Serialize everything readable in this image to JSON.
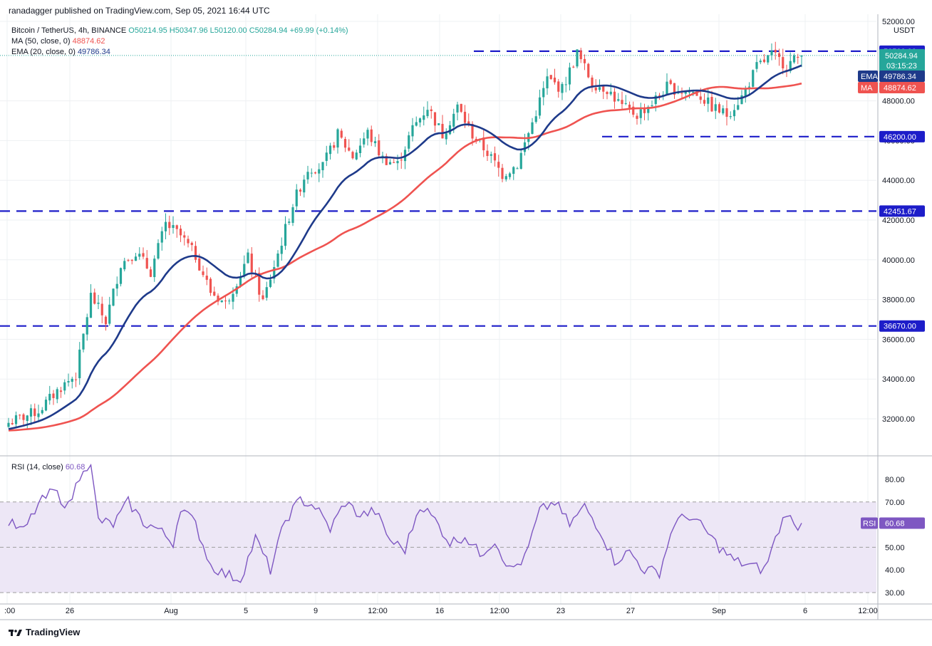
{
  "header": {
    "publisher": "ranadagger published on TradingView.com, Sep 05, 2021 16:44 UTC"
  },
  "legend": {
    "symbol": "Bitcoin / TetherUS, 4h, BINANCE",
    "ohlc": "O50214.95 H50347.96 L50120.00 C50284.94 +69.99 (+0.14%)",
    "ma_label": "MA (50, close, 0)",
    "ma_value": "48874.62",
    "ema_label": "EMA (20, close, 0)",
    "ema_value": "49786.34"
  },
  "rsi_title": {
    "label": "RSI (14, close)",
    "value": "60.68"
  },
  "footer": {
    "brand": "TradingView"
  },
  "colors": {
    "up": "#26a69a",
    "down": "#ef5350",
    "ema": "#1e3a8a",
    "ma": "#ef5350",
    "level": "#1d1dc9",
    "rsi": "#7e57c2",
    "rsi_band": "#ede7f6"
  },
  "chart_data": [
    {
      "type": "candlestick",
      "title": "Bitcoin / TetherUS, 4h, BINANCE",
      "y_unit": "USDT",
      "ylim": [
        30600,
        52000
      ],
      "y_ticks": [
        "52000.00",
        "48000.00",
        "46000.00",
        "44000.00",
        "42000.00",
        "40000.00",
        "38000.00",
        "36000.00",
        "34000.00",
        "32000.00"
      ],
      "x_ticks": [
        ":00",
        "26",
        "Aug",
        "5",
        "9",
        "12:00",
        "16",
        "12:00",
        "23",
        "27",
        "Sep",
        "6",
        "12:00"
      ],
      "levels": [
        {
          "label": "50500.00",
          "value": 50500
        },
        {
          "label": "46200.00",
          "value": 46200
        },
        {
          "label": "42451.67",
          "value": 42452
        },
        {
          "label": "36670.00",
          "value": 36670
        }
      ],
      "last_price": {
        "label": "50284.94",
        "countdown": "03:15:23",
        "value": 50285
      },
      "indicators": [
        {
          "name": "EMA",
          "label": "49786.34",
          "value": 49786
        },
        {
          "name": "MA",
          "label": "48874.62",
          "value": 48875
        }
      ],
      "close_anchors": [
        [
          0,
          31800
        ],
        [
          8,
          32400
        ],
        [
          14,
          33600
        ],
        [
          18,
          34200
        ],
        [
          22,
          38200
        ],
        [
          26,
          36900
        ],
        [
          30,
          39800
        ],
        [
          34,
          40400
        ],
        [
          38,
          39400
        ],
        [
          42,
          41800
        ],
        [
          46,
          41200
        ],
        [
          50,
          40200
        ],
        [
          54,
          38400
        ],
        [
          58,
          37800
        ],
        [
          64,
          40100
        ],
        [
          68,
          37900
        ],
        [
          72,
          40300
        ],
        [
          76,
          42800
        ],
        [
          80,
          44600
        ],
        [
          84,
          44700
        ],
        [
          88,
          46300
        ],
        [
          92,
          45200
        ],
        [
          96,
          46400
        ],
        [
          100,
          45100
        ],
        [
          104,
          44800
        ],
        [
          108,
          46600
        ],
        [
          112,
          47700
        ],
        [
          116,
          46300
        ],
        [
          120,
          47700
        ],
        [
          124,
          46300
        ],
        [
          128,
          45400
        ],
        [
          132,
          44300
        ],
        [
          136,
          44800
        ],
        [
          140,
          46900
        ],
        [
          144,
          49100
        ],
        [
          148,
          48600
        ],
        [
          152,
          50400
        ],
        [
          156,
          48900
        ],
        [
          160,
          48600
        ],
        [
          164,
          47700
        ],
        [
          168,
          47300
        ],
        [
          172,
          47900
        ],
        [
          176,
          48700
        ],
        [
          180,
          48500
        ],
        [
          184,
          48400
        ],
        [
          188,
          47700
        ],
        [
          192,
          47300
        ],
        [
          196,
          48200
        ],
        [
          200,
          49700
        ],
        [
          204,
          50300
        ],
        [
          208,
          49800
        ],
        [
          212,
          50285
        ]
      ],
      "ema": {
        "first": 31450,
        "last": 49786
      },
      "ma": {
        "first": 31400,
        "last": 48875
      }
    },
    {
      "type": "line",
      "title": "RSI (14, close)",
      "ylim": [
        27,
        88
      ],
      "y_ticks": [
        "80.00",
        "70.00",
        "50.00",
        "40.00",
        "30.00"
      ],
      "band": [
        30,
        70
      ],
      "midline": 50,
      "last": {
        "label": "60.68",
        "value": 60.68
      },
      "anchor_points": [
        [
          0,
          61
        ],
        [
          4,
          57
        ],
        [
          8,
          69
        ],
        [
          12,
          75
        ],
        [
          16,
          68
        ],
        [
          20,
          86
        ],
        [
          22,
          85
        ],
        [
          24,
          62
        ],
        [
          28,
          60
        ],
        [
          32,
          70
        ],
        [
          36,
          61
        ],
        [
          40,
          58
        ],
        [
          44,
          52
        ],
        [
          46,
          68
        ],
        [
          50,
          60
        ],
        [
          54,
          42
        ],
        [
          58,
          38
        ],
        [
          62,
          36
        ],
        [
          66,
          54
        ],
        [
          70,
          40
        ],
        [
          74,
          62
        ],
        [
          78,
          71
        ],
        [
          82,
          68
        ],
        [
          86,
          58
        ],
        [
          90,
          70
        ],
        [
          94,
          64
        ],
        [
          98,
          66
        ],
        [
          102,
          53
        ],
        [
          106,
          49
        ],
        [
          110,
          69
        ],
        [
          114,
          62
        ],
        [
          118,
          52
        ],
        [
          122,
          55
        ],
        [
          126,
          47
        ],
        [
          130,
          53
        ],
        [
          134,
          40
        ],
        [
          138,
          45
        ],
        [
          142,
          66
        ],
        [
          146,
          70
        ],
        [
          150,
          60
        ],
        [
          154,
          68
        ],
        [
          158,
          58
        ],
        [
          162,
          44
        ],
        [
          166,
          48
        ],
        [
          170,
          40
        ],
        [
          174,
          39
        ],
        [
          178,
          61
        ],
        [
          182,
          64
        ],
        [
          186,
          58
        ],
        [
          190,
          50
        ],
        [
          194,
          44
        ],
        [
          198,
          42
        ],
        [
          202,
          40
        ],
        [
          206,
          58
        ],
        [
          208,
          66
        ],
        [
          210,
          59
        ],
        [
          212,
          60.68
        ]
      ]
    }
  ]
}
